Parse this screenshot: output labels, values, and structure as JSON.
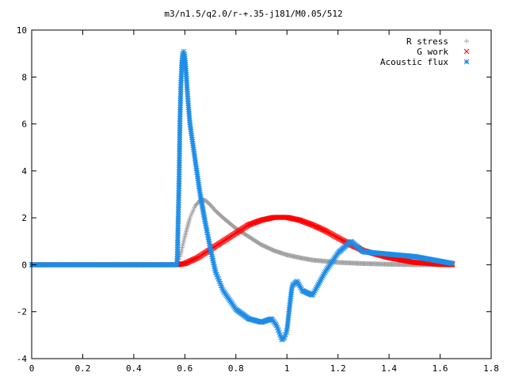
{
  "chart_data": {
    "type": "scatter",
    "title": "m3/n1.5/q2.0/r-+.35-j181/M0.05/512",
    "xlabel": "",
    "ylabel": "",
    "xlim": [
      0,
      1.8
    ],
    "ylim": [
      -4,
      10
    ],
    "xticks": [
      0,
      0.2,
      0.4,
      0.6,
      0.8,
      1,
      1.2,
      1.4,
      1.6,
      1.8
    ],
    "xtick_labels": [
      "0",
      "0.2",
      "0.4",
      "0.6",
      "0.8",
      "1",
      "1.2",
      "1.4",
      "1.6",
      "1.8"
    ],
    "yticks": [
      -4,
      -2,
      0,
      2,
      4,
      6,
      8,
      10
    ],
    "ytick_labels": [
      "-4",
      "-2",
      "0",
      "2",
      "4",
      "6",
      "8",
      "10"
    ],
    "grid": false,
    "legend_position": "top-right",
    "series": [
      {
        "name": "R stress",
        "marker": "plus",
        "color": "#a0a0a0",
        "x": [
          0.0,
          0.1,
          0.2,
          0.3,
          0.4,
          0.5,
          0.57,
          0.58,
          0.6,
          0.62,
          0.64,
          0.66,
          0.68,
          0.7,
          0.72,
          0.75,
          0.8,
          0.85,
          0.9,
          0.95,
          1.0,
          1.05,
          1.1,
          1.2,
          1.3,
          1.4,
          1.5,
          1.6,
          1.65
        ],
        "y": [
          0,
          0,
          0,
          0,
          0,
          0,
          0,
          0.3,
          1.2,
          2.0,
          2.5,
          2.75,
          2.75,
          2.55,
          2.3,
          2.0,
          1.55,
          1.2,
          0.85,
          0.6,
          0.42,
          0.3,
          0.2,
          0.1,
          0.05,
          0.02,
          0.0,
          0.0,
          0.0
        ]
      },
      {
        "name": "G work",
        "marker": "cross",
        "color": "#ff0000",
        "x": [
          0.0,
          0.1,
          0.2,
          0.3,
          0.4,
          0.5,
          0.57,
          0.6,
          0.65,
          0.7,
          0.75,
          0.8,
          0.85,
          0.9,
          0.95,
          1.0,
          1.05,
          1.1,
          1.15,
          1.2,
          1.25,
          1.3,
          1.4,
          1.5,
          1.6,
          1.65
        ],
        "y": [
          0,
          0,
          0,
          0,
          0,
          0,
          0,
          0.05,
          0.3,
          0.65,
          1.0,
          1.35,
          1.7,
          1.9,
          2.02,
          2.02,
          1.9,
          1.7,
          1.45,
          1.15,
          0.85,
          0.6,
          0.3,
          0.1,
          0.02,
          0.0
        ]
      },
      {
        "name": "Acoustic flux",
        "marker": "star",
        "color": "#1e8ce6",
        "x": [
          0.0,
          0.1,
          0.2,
          0.3,
          0.4,
          0.5,
          0.57,
          0.578,
          0.582,
          0.585,
          0.588,
          0.592,
          0.596,
          0.6,
          0.605,
          0.61,
          0.62,
          0.64,
          0.66,
          0.68,
          0.7,
          0.72,
          0.75,
          0.8,
          0.85,
          0.9,
          0.94,
          0.96,
          0.98,
          0.99,
          1.0,
          1.01,
          1.02,
          1.04,
          1.06,
          1.1,
          1.15,
          1.2,
          1.25,
          1.3,
          1.4,
          1.5,
          1.6,
          1.65
        ],
        "y": [
          0,
          0,
          0,
          0,
          0,
          0,
          0,
          3.9,
          7.0,
          7.8,
          8.6,
          9.05,
          9.1,
          8.9,
          8.2,
          7.3,
          6.0,
          4.5,
          3.0,
          1.8,
          0.7,
          -0.3,
          -1.1,
          -1.9,
          -2.3,
          -2.45,
          -2.3,
          -2.6,
          -3.2,
          -3.1,
          -2.8,
          -1.8,
          -0.9,
          -0.7,
          -1.1,
          -1.3,
          -0.3,
          0.5,
          1.0,
          0.55,
          0.45,
          0.35,
          0.15,
          0.05
        ]
      }
    ]
  }
}
